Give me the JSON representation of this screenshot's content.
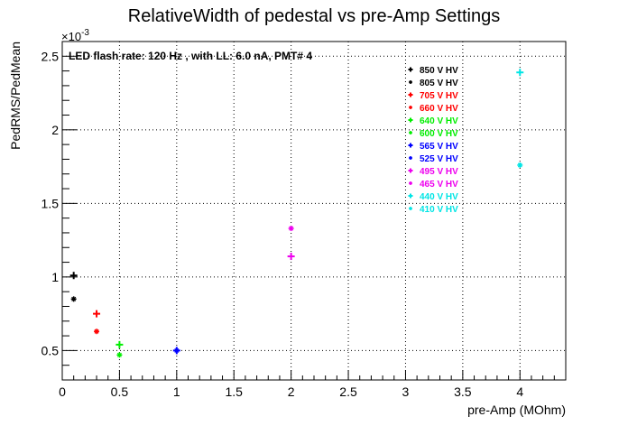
{
  "chart_data": {
    "type": "scatter",
    "title": "RelativeWidth of pedestal vs pre-Amp Settings",
    "annotation": "LED flash rate: 120 Hz , with LL: 6.0 nA, PMT# 4",
    "xlabel": "pre-Amp (MOhm)",
    "ylabel": "PedRMS/PedMean",
    "y_multiplier": "×10",
    "y_multiplier_exp": "-3",
    "xlim": [
      0,
      4.4
    ],
    "ylim": [
      0.0003,
      0.0026
    ],
    "x_ticks": [
      0,
      0.5,
      1,
      1.5,
      2,
      2.5,
      3,
      3.5,
      4
    ],
    "x_tick_labels": [
      "0",
      "0.5",
      "1",
      "1.5",
      "2",
      "2.5",
      "3",
      "3.5",
      "4"
    ],
    "y_ticks": [
      0.0005,
      0.001,
      0.0015,
      0.002,
      0.0025
    ],
    "y_tick_labels": [
      "0.5",
      "1",
      "1.5",
      "2",
      "2.5"
    ],
    "grid": true,
    "legend_position": "top-right",
    "series": [
      {
        "name": "850 V HV",
        "color": "#000000",
        "marker": "cross",
        "x": [
          0.1
        ],
        "y": [
          0.00101
        ]
      },
      {
        "name": "805 V HV",
        "color": "#000000",
        "marker": "star",
        "x": [
          0.1
        ],
        "y": [
          0.00085
        ]
      },
      {
        "name": "705 V HV",
        "color": "#ff0000",
        "marker": "cross",
        "x": [
          0.3
        ],
        "y": [
          0.00075
        ]
      },
      {
        "name": "660 V HV",
        "color": "#ff0000",
        "marker": "star",
        "x": [
          0.3
        ],
        "y": [
          0.00063
        ]
      },
      {
        "name": "640 V HV",
        "color": "#00ee00",
        "marker": "cross",
        "x": [
          0.5
        ],
        "y": [
          0.00054
        ]
      },
      {
        "name": "600 V HV",
        "color": "#00ee00",
        "marker": "star",
        "x": [
          0.5
        ],
        "y": [
          0.00047
        ]
      },
      {
        "name": "565 V HV",
        "color": "#0000ff",
        "marker": "cross",
        "x": [
          1.0
        ],
        "y": [
          0.0005
        ]
      },
      {
        "name": "525 V HV",
        "color": "#0000ff",
        "marker": "star",
        "x": [
          1.0
        ],
        "y": [
          0.0005
        ]
      },
      {
        "name": "495 V HV",
        "color": "#ee00ee",
        "marker": "cross",
        "x": [
          2.0
        ],
        "y": [
          0.00114
        ]
      },
      {
        "name": "465 V HV",
        "color": "#ee00ee",
        "marker": "star",
        "x": [
          2.0
        ],
        "y": [
          0.00133
        ]
      },
      {
        "name": "440 V HV",
        "color": "#00e5e5",
        "marker": "cross",
        "x": [
          4.0
        ],
        "y": [
          0.00239
        ]
      },
      {
        "name": "410 V HV",
        "color": "#00e5e5",
        "marker": "star",
        "x": [
          4.0
        ],
        "y": [
          0.00176
        ]
      }
    ]
  }
}
